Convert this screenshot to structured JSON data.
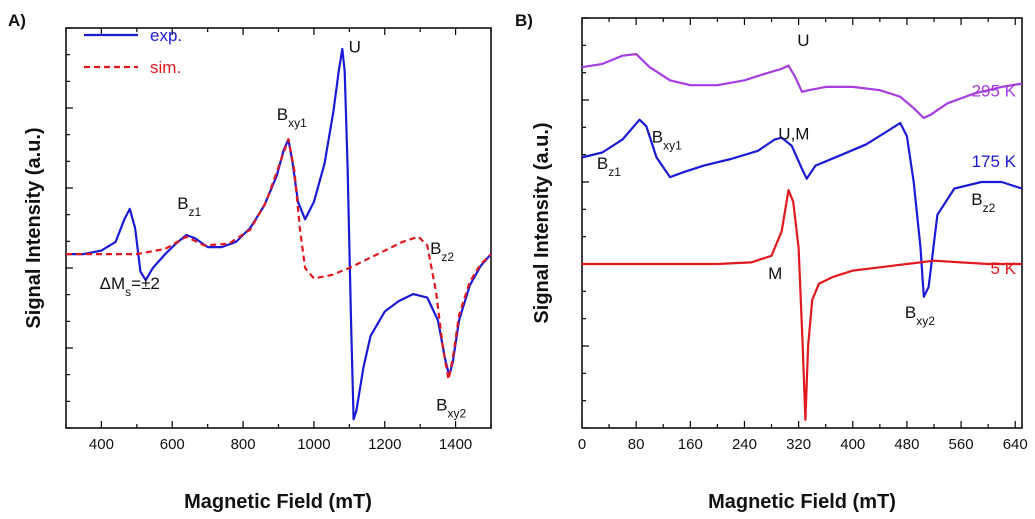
{
  "chart_data": [
    {
      "panel": "A)",
      "type": "line",
      "xlabel": "Magnetic Field (mT)",
      "ylabel": "Signal Intensity (a.u.)",
      "xlim": [
        300,
        1500
      ],
      "ylim": [
        -1.0,
        1.3
      ],
      "xticks": [
        400,
        600,
        800,
        1000,
        1200,
        1400
      ],
      "legend": {
        "placement": "top-left"
      },
      "series": [
        {
          "name": "exp.",
          "color": "#1a1ad6",
          "style": "solid",
          "points": [
            [
              300,
              0.0
            ],
            [
              350,
              0.0
            ],
            [
              400,
              0.02
            ],
            [
              440,
              0.07
            ],
            [
              465,
              0.2
            ],
            [
              480,
              0.26
            ],
            [
              495,
              0.15
            ],
            [
              510,
              -0.1
            ],
            [
              525,
              -0.15
            ],
            [
              545,
              -0.08
            ],
            [
              580,
              0.0
            ],
            [
              610,
              0.06
            ],
            [
              640,
              0.11
            ],
            [
              665,
              0.09
            ],
            [
              700,
              0.04
            ],
            [
              740,
              0.04
            ],
            [
              780,
              0.07
            ],
            [
              820,
              0.15
            ],
            [
              860,
              0.28
            ],
            [
              895,
              0.45
            ],
            [
              915,
              0.6
            ],
            [
              928,
              0.66
            ],
            [
              940,
              0.52
            ],
            [
              955,
              0.3
            ],
            [
              975,
              0.2
            ],
            [
              1000,
              0.3
            ],
            [
              1030,
              0.52
            ],
            [
              1055,
              0.82
            ],
            [
              1070,
              1.05
            ],
            [
              1080,
              1.18
            ],
            [
              1087,
              1.05
            ],
            [
              1095,
              0.5
            ],
            [
              1105,
              -0.4
            ],
            [
              1112,
              -0.95
            ],
            [
              1120,
              -0.9
            ],
            [
              1140,
              -0.65
            ],
            [
              1160,
              -0.47
            ],
            [
              1200,
              -0.33
            ],
            [
              1240,
              -0.27
            ],
            [
              1280,
              -0.23
            ],
            [
              1320,
              -0.25
            ],
            [
              1350,
              -0.38
            ],
            [
              1370,
              -0.6
            ],
            [
              1382,
              -0.7
            ],
            [
              1392,
              -0.62
            ],
            [
              1410,
              -0.38
            ],
            [
              1440,
              -0.18
            ],
            [
              1470,
              -0.07
            ],
            [
              1500,
              0.0
            ]
          ]
        },
        {
          "name": "sim.",
          "color": "#e0191f",
          "style": "dashed",
          "points": [
            [
              300,
              0.0
            ],
            [
              500,
              0.0
            ],
            [
              580,
              0.03
            ],
            [
              640,
              0.1
            ],
            [
              690,
              0.05
            ],
            [
              760,
              0.06
            ],
            [
              820,
              0.14
            ],
            [
              865,
              0.3
            ],
            [
              900,
              0.5
            ],
            [
              928,
              0.66
            ],
            [
              945,
              0.48
            ],
            [
              960,
              0.15
            ],
            [
              975,
              -0.08
            ],
            [
              1000,
              -0.14
            ],
            [
              1050,
              -0.12
            ],
            [
              1100,
              -0.08
            ],
            [
              1150,
              -0.03
            ],
            [
              1200,
              0.02
            ],
            [
              1250,
              0.07
            ],
            [
              1295,
              0.1
            ],
            [
              1320,
              0.05
            ],
            [
              1345,
              -0.22
            ],
            [
              1365,
              -0.55
            ],
            [
              1380,
              -0.72
            ],
            [
              1392,
              -0.6
            ],
            [
              1410,
              -0.35
            ],
            [
              1440,
              -0.16
            ],
            [
              1470,
              -0.06
            ],
            [
              1500,
              0.0
            ]
          ]
        }
      ],
      "annotations": [
        {
          "base": "U",
          "sub": "",
          "x": 1098,
          "y": 1.16
        },
        {
          "base": "B",
          "sub": "xy1",
          "x": 895,
          "y": 0.77
        },
        {
          "base": "B",
          "sub": "z1",
          "x": 614,
          "y": 0.26
        },
        {
          "base": "ΔM",
          "sub": "s",
          "x": 395,
          "y": -0.2,
          "suffix": "=±2"
        },
        {
          "base": "B",
          "sub": "z2",
          "x": 1328,
          "y": 0.0
        },
        {
          "base": "B",
          "sub": "xy2",
          "x": 1345,
          "y": -0.9
        }
      ]
    },
    {
      "panel": "B)",
      "type": "line",
      "xlabel": "Magnetic Field (mT)",
      "ylabel": "Signal Intensity (a.u.)",
      "xlim": [
        0,
        650
      ],
      "ylim": [
        -1.0,
        1.5
      ],
      "xticks": [
        0,
        80,
        160,
        240,
        320,
        400,
        480,
        560,
        640
      ],
      "series": [
        {
          "name": "295 K",
          "color": "#a53de0",
          "points": [
            [
              0,
              1.2
            ],
            [
              30,
              1.22
            ],
            [
              60,
              1.27
            ],
            [
              80,
              1.28
            ],
            [
              100,
              1.2
            ],
            [
              130,
              1.12
            ],
            [
              160,
              1.09
            ],
            [
              200,
              1.09
            ],
            [
              240,
              1.12
            ],
            [
              270,
              1.16
            ],
            [
              295,
              1.19
            ],
            [
              305,
              1.21
            ],
            [
              315,
              1.14
            ],
            [
              325,
              1.05
            ],
            [
              335,
              1.06
            ],
            [
              360,
              1.08
            ],
            [
              400,
              1.08
            ],
            [
              440,
              1.06
            ],
            [
              470,
              1.02
            ],
            [
              490,
              0.95
            ],
            [
              505,
              0.89
            ],
            [
              515,
              0.91
            ],
            [
              540,
              0.98
            ],
            [
              580,
              1.04
            ],
            [
              620,
              1.08
            ],
            [
              650,
              1.1
            ]
          ]
        },
        {
          "name": "175 K",
          "color": "#1a1ad6",
          "points": [
            [
              0,
              0.65
            ],
            [
              30,
              0.68
            ],
            [
              60,
              0.76
            ],
            [
              85,
              0.88
            ],
            [
              95,
              0.84
            ],
            [
              110,
              0.65
            ],
            [
              130,
              0.53
            ],
            [
              150,
              0.56
            ],
            [
              180,
              0.6
            ],
            [
              220,
              0.64
            ],
            [
              260,
              0.69
            ],
            [
              285,
              0.76
            ],
            [
              295,
              0.77
            ],
            [
              310,
              0.72
            ],
            [
              325,
              0.58
            ],
            [
              332,
              0.52
            ],
            [
              345,
              0.6
            ],
            [
              380,
              0.66
            ],
            [
              420,
              0.73
            ],
            [
              455,
              0.82
            ],
            [
              470,
              0.86
            ],
            [
              480,
              0.78
            ],
            [
              490,
              0.5
            ],
            [
              500,
              0.1
            ],
            [
              505,
              -0.2
            ],
            [
              512,
              -0.14
            ],
            [
              525,
              0.3
            ],
            [
              550,
              0.46
            ],
            [
              590,
              0.5
            ],
            [
              620,
              0.5
            ],
            [
              650,
              0.46
            ]
          ]
        },
        {
          "name": "5 K",
          "color": "#e0191f",
          "points": [
            [
              0,
              0.0
            ],
            [
              100,
              0.0
            ],
            [
              200,
              0.0
            ],
            [
              250,
              0.01
            ],
            [
              280,
              0.05
            ],
            [
              295,
              0.2
            ],
            [
              305,
              0.45
            ],
            [
              312,
              0.38
            ],
            [
              320,
              0.1
            ],
            [
              326,
              -0.5
            ],
            [
              330,
              -0.95
            ],
            [
              334,
              -0.5
            ],
            [
              340,
              -0.22
            ],
            [
              350,
              -0.12
            ],
            [
              370,
              -0.08
            ],
            [
              400,
              -0.04
            ],
            [
              440,
              -0.02
            ],
            [
              480,
              0.0
            ],
            [
              520,
              0.02
            ],
            [
              560,
              0.01
            ],
            [
              600,
              0.0
            ],
            [
              650,
              0.0
            ]
          ]
        }
      ],
      "annotations": [
        {
          "base": "U",
          "sub": "",
          "x": 318,
          "y": 1.33
        },
        {
          "base": "B",
          "sub": "xy1",
          "x": 103,
          "y": 0.74
        },
        {
          "base": "B",
          "sub": "z1",
          "x": 22,
          "y": 0.58
        },
        {
          "base": "U,M",
          "sub": "",
          "x": 290,
          "y": 0.76
        },
        {
          "base": "M",
          "sub": "",
          "x": 275,
          "y": -0.09
        },
        {
          "base": "B",
          "sub": "z2",
          "x": 575,
          "y": 0.36
        },
        {
          "base": "B",
          "sub": "xy2",
          "x": 477,
          "y": -0.33
        }
      ],
      "temperature_labels": [
        {
          "text": "295 K",
          "color": "#a53de0",
          "y": 1.02
        },
        {
          "text": "175 K",
          "color": "#1a1ad6",
          "y": 0.59
        },
        {
          "text": "5 K",
          "color": "#e0191f",
          "y": -0.06
        }
      ]
    }
  ]
}
